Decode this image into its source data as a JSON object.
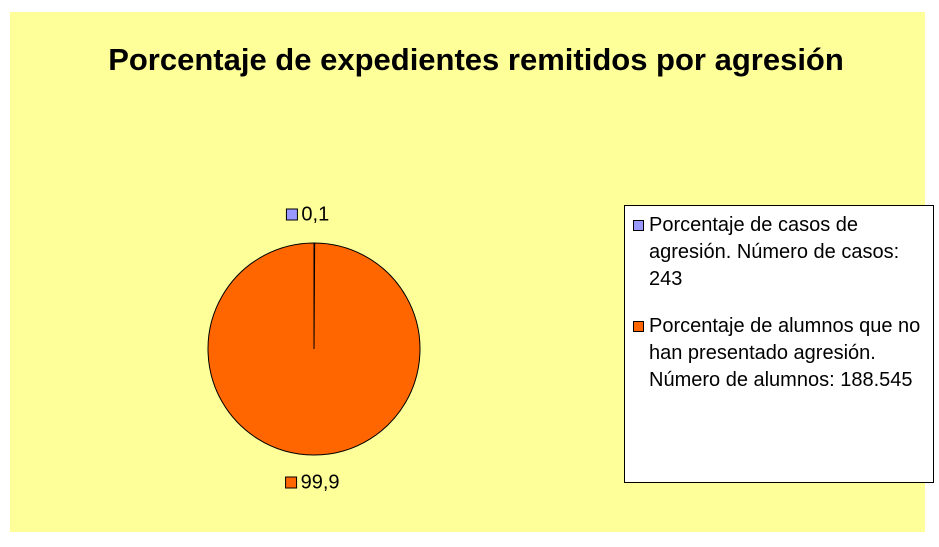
{
  "chart_data": {
    "type": "pie",
    "title": "Porcentaje de expedientes remitidos por agresión",
    "categories": [
      "Porcentaje de casos de agresión. Número de casos: 243",
      "Porcentaje de alumnos que no han presentado agresión. Número de alumnos: 188.545"
    ],
    "values": [
      0.1,
      99.9
    ],
    "value_labels": [
      "0,1",
      "99,9"
    ],
    "colors": [
      "#9999ff",
      "#ff6600"
    ],
    "legend": "right"
  }
}
